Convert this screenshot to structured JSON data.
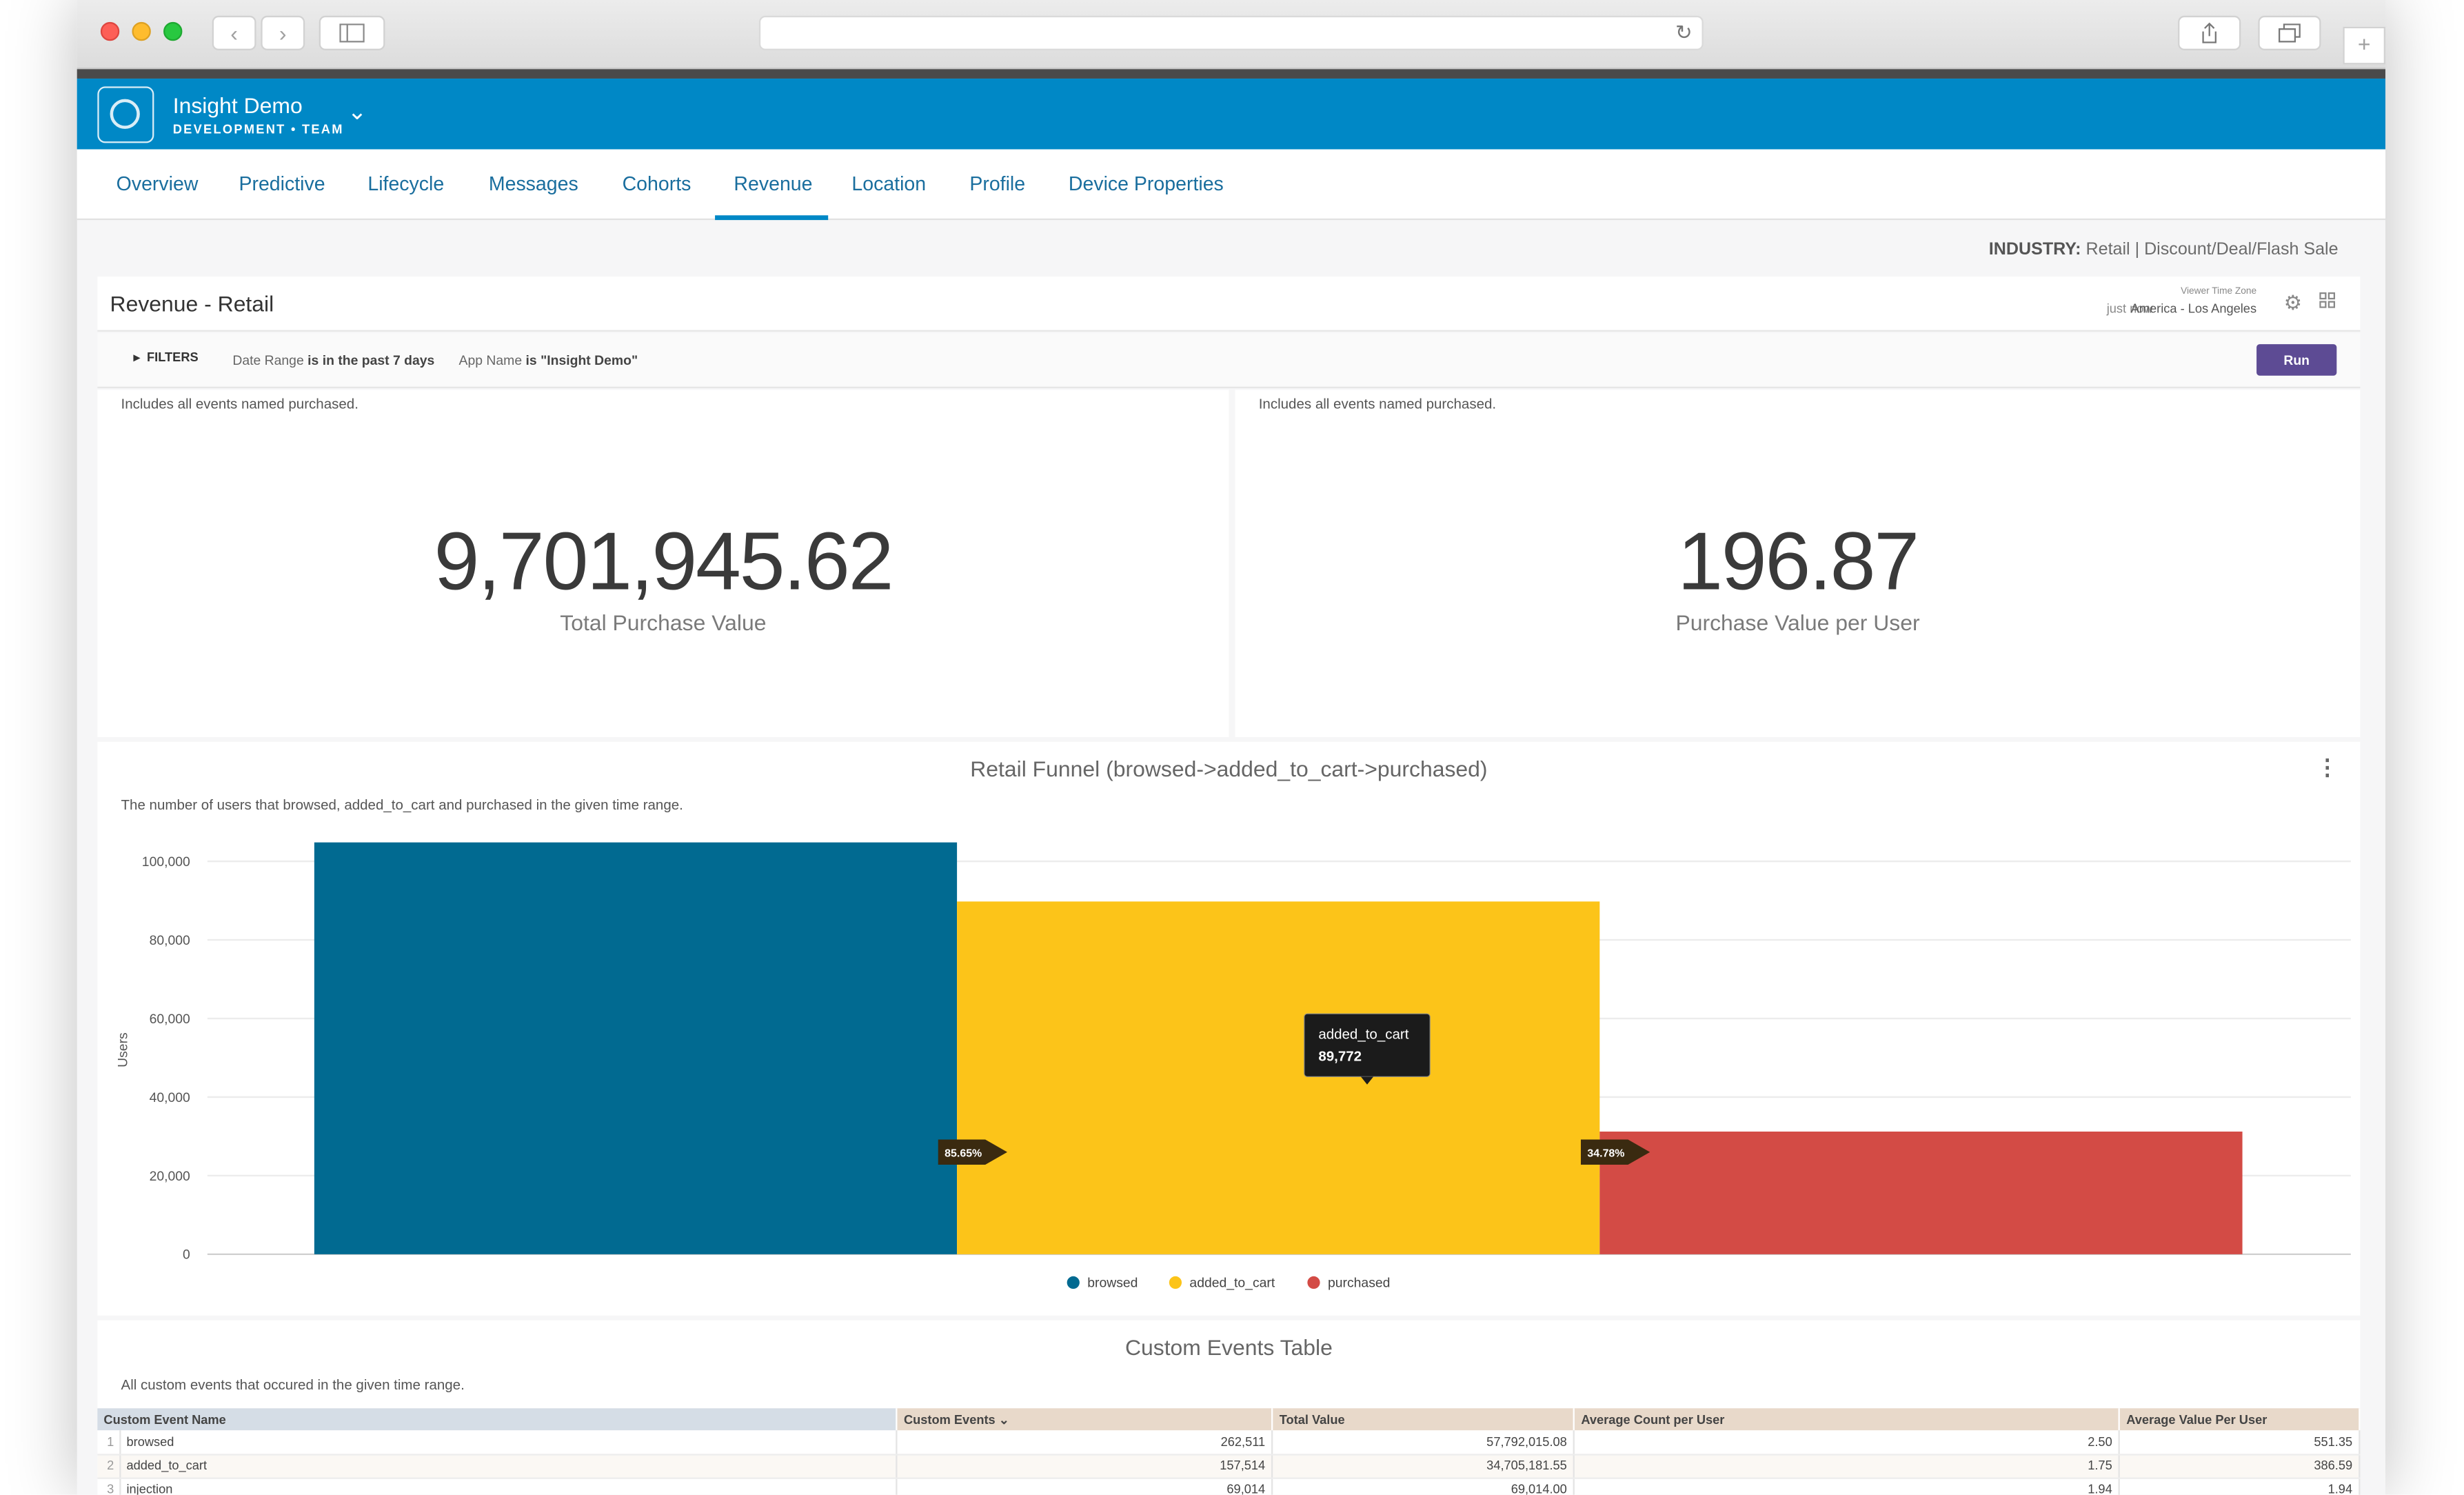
{
  "app": {
    "name": "Insight Demo",
    "subtitle": "DEVELOPMENT • TEAM"
  },
  "nav": {
    "tabs": [
      "Overview",
      "Predictive",
      "Lifecycle",
      "Messages",
      "Cohorts",
      "Revenue",
      "Location",
      "Profile",
      "Device Properties"
    ],
    "active": "Revenue"
  },
  "industry": {
    "label": "INDUSTRY:",
    "value": "Retail | Discount/Deal/Flash Sale"
  },
  "dashboard": {
    "title": "Revenue - Retail",
    "timezone_label": "Viewer Time Zone",
    "timezone_value": "America - Los Angeles",
    "updated": "just now"
  },
  "filters": {
    "toggle_label": "FILTERS",
    "date_field": "Date Range",
    "date_value": "is in the past 7 days",
    "app_field": "App Name",
    "app_value": "is \"Insight Demo\"",
    "run_label": "Run"
  },
  "kpis": [
    {
      "description": "Includes all events named purchased.",
      "value": "9,701,945.62",
      "label": "Total Purchase Value"
    },
    {
      "description": "Includes all events named purchased.",
      "value": "196.87",
      "label": "Purchase Value per User"
    }
  ],
  "funnel": {
    "title": "Retail Funnel (browsed->added_to_cart->purchased)",
    "description": "The number of users that browsed, added_to_cart and purchased in the given time range.",
    "menu_icon": "more-vertical-icon",
    "tooltip_name": "added_to_cart",
    "tooltip_value": "89,772",
    "conversion_labels": [
      "85.65%",
      "34.78%"
    ]
  },
  "chart_data": {
    "type": "bar",
    "title": "Retail Funnel (browsed->added_to_cart->purchased)",
    "categories": [
      "browsed",
      "added_to_cart",
      "purchased"
    ],
    "values": [
      104814,
      89772,
      31224
    ],
    "colors": [
      "#016a91",
      "#fcc419",
      "#d34b45"
    ],
    "xlabel": "",
    "ylabel": "Users",
    "ylim": [
      0,
      100000
    ],
    "yticks": [
      0,
      20000,
      40000,
      60000,
      80000,
      100000
    ],
    "ytick_labels": [
      "0",
      "20,000",
      "40,000",
      "60,000",
      "80,000",
      "100,000"
    ],
    "legend": [
      "browsed",
      "added_to_cart",
      "purchased"
    ],
    "legend_position": "bottom",
    "grid": true
  },
  "events": {
    "title": "Custom Events Table",
    "description": "All custom events that occured in the given time range.",
    "columns": [
      "Custom Event Name",
      "Custom Events",
      "Total Value",
      "Average Count per User",
      "Average Value Per User"
    ],
    "rows": [
      [
        "1",
        "browsed",
        "262,511",
        "57,792,015.08",
        "2.50",
        "551.35"
      ],
      [
        "2",
        "added_to_cart",
        "157,514",
        "34,705,181.55",
        "1.75",
        "386.59"
      ],
      [
        "3",
        "injection",
        "69,014",
        "69,014.00",
        "1.94",
        "1.94"
      ]
    ]
  }
}
